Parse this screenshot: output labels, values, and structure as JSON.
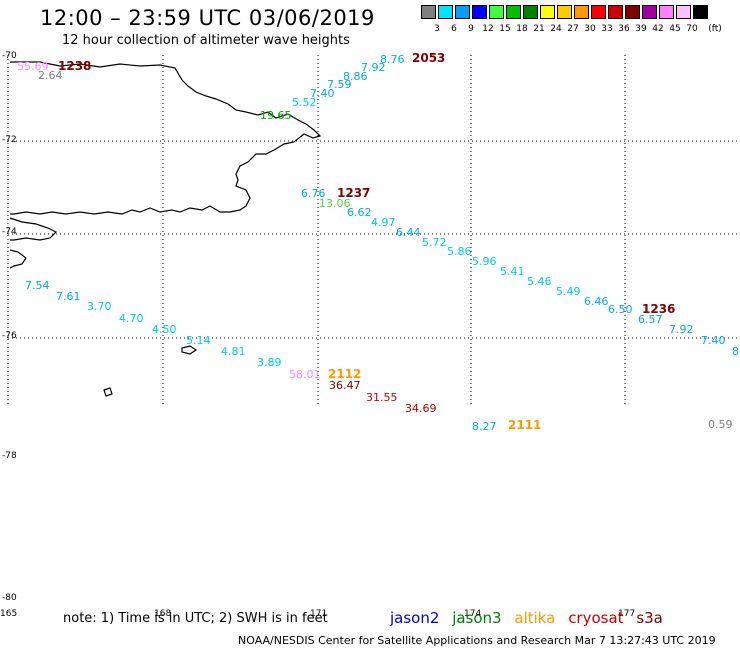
{
  "header": {
    "title": "12:00 – 23:59 UTC 03/06/2019",
    "subtitle": "12 hour collection of altimeter wave heights"
  },
  "legend": {
    "unit": "(ft)",
    "items": [
      {
        "color": "#808080",
        "label": "3"
      },
      {
        "color": "#00e5ff",
        "label": "6"
      },
      {
        "color": "#00a0ff",
        "label": "9"
      },
      {
        "color": "#0000ff",
        "label": "12"
      },
      {
        "color": "#40ff40",
        "label": "15"
      },
      {
        "color": "#00c000",
        "label": "18"
      },
      {
        "color": "#008000",
        "label": "21"
      },
      {
        "color": "#ffff00",
        "label": "24"
      },
      {
        "color": "#ffcc00",
        "label": "27"
      },
      {
        "color": "#ff9900",
        "label": "30"
      },
      {
        "color": "#ff0000",
        "label": "33"
      },
      {
        "color": "#cc0000",
        "label": "36"
      },
      {
        "color": "#800000",
        "label": "39"
      },
      {
        "color": "#a000a0",
        "label": "42"
      },
      {
        "color": "#ff80ff",
        "label": "45"
      },
      {
        "color": "#ffc0ff",
        "label": "70"
      },
      {
        "color": "#000000",
        "label": ""
      }
    ]
  },
  "axes": {
    "lat_labels": [
      "-70",
      "-72",
      "-74",
      "-76",
      "-78",
      "-80"
    ],
    "lon_labels": [
      "165",
      "168",
      "171",
      "174",
      "177"
    ]
  },
  "wave_heights": [
    {
      "text": "55.69",
      "color": "#ff88ff"
    },
    {
      "text": "2.64",
      "color": "#808080"
    },
    {
      "text": "8.76",
      "color": "#00aaee"
    },
    {
      "text": "7.92",
      "color": "#00aaee"
    },
    {
      "text": "8.86",
      "color": "#00aaee"
    },
    {
      "text": "7.59",
      "color": "#00aaee"
    },
    {
      "text": "7.40",
      "color": "#00aaee"
    },
    {
      "text": "5.52",
      "color": "#00ccee"
    },
    {
      "text": "19.65",
      "color": "#00a000"
    },
    {
      "text": "6.76",
      "color": "#00aaee"
    },
    {
      "text": "13.06",
      "color": "#44dd44"
    },
    {
      "text": "6.62",
      "color": "#00aaee"
    },
    {
      "text": "4.97",
      "color": "#00ccee"
    },
    {
      "text": "6.44",
      "color": "#00aaee"
    },
    {
      "text": "5.72",
      "color": "#00ccee"
    },
    {
      "text": "5.86",
      "color": "#00ccee"
    },
    {
      "text": "5.96",
      "color": "#00ccee"
    },
    {
      "text": "5.41",
      "color": "#00ccee"
    },
    {
      "text": "5.46",
      "color": "#00ccee"
    },
    {
      "text": "5.49",
      "color": "#00ccee"
    },
    {
      "text": "6.46",
      "color": "#00aaee"
    },
    {
      "text": "6.50",
      "color": "#00aaee"
    },
    {
      "text": "6.57",
      "color": "#00aaee"
    },
    {
      "text": "7.92",
      "color": "#00aaee"
    },
    {
      "text": "7.40",
      "color": "#00aaee"
    },
    {
      "text": "8",
      "color": "#00aaee"
    },
    {
      "text": "7.54",
      "color": "#00aaee"
    },
    {
      "text": "7.61",
      "color": "#00aaee"
    },
    {
      "text": "3.70",
      "color": "#00ccee"
    },
    {
      "text": "4.70",
      "color": "#00ccee"
    },
    {
      "text": "4.50",
      "color": "#00ccee"
    },
    {
      "text": "5.14",
      "color": "#00ccee"
    },
    {
      "text": "4.81",
      "color": "#00ccee"
    },
    {
      "text": "3.89",
      "color": "#00ccee"
    },
    {
      "text": "58.01",
      "color": "#ff88ff"
    },
    {
      "text": "36.47",
      "color": "#800000"
    },
    {
      "text": "31.55",
      "color": "#cc0000"
    },
    {
      "text": "34.69",
      "color": "#aa0000"
    },
    {
      "text": "8.27",
      "color": "#00aaee"
    },
    {
      "text": "0.59",
      "color": "#808080"
    }
  ],
  "pass_times": [
    {
      "text": "1238",
      "color": "#800000"
    },
    {
      "text": "2053",
      "color": "#800000"
    },
    {
      "text": "1237",
      "color": "#800000"
    },
    {
      "text": "1236",
      "color": "#800000"
    },
    {
      "text": "2112",
      "color": "#ff9900"
    },
    {
      "text": "2111",
      "color": "#ff9900"
    }
  ],
  "footer": {
    "note": "note: 1) Time is in UTC; 2) SWH is in feet",
    "satellites": [
      {
        "name": "jason2",
        "color": "#0000cc"
      },
      {
        "name": "jason3",
        "color": "#008000"
      },
      {
        "name": "altika",
        "color": "#ff9900"
      },
      {
        "name": "cryosat",
        "color": "#cc0000"
      },
      {
        "name": "s3a",
        "color": "#800000"
      }
    ],
    "credit": "NOAA/NESDIS Center for Satellite Applications and Research    Mar  7 13:27:43 UTC 2019"
  }
}
